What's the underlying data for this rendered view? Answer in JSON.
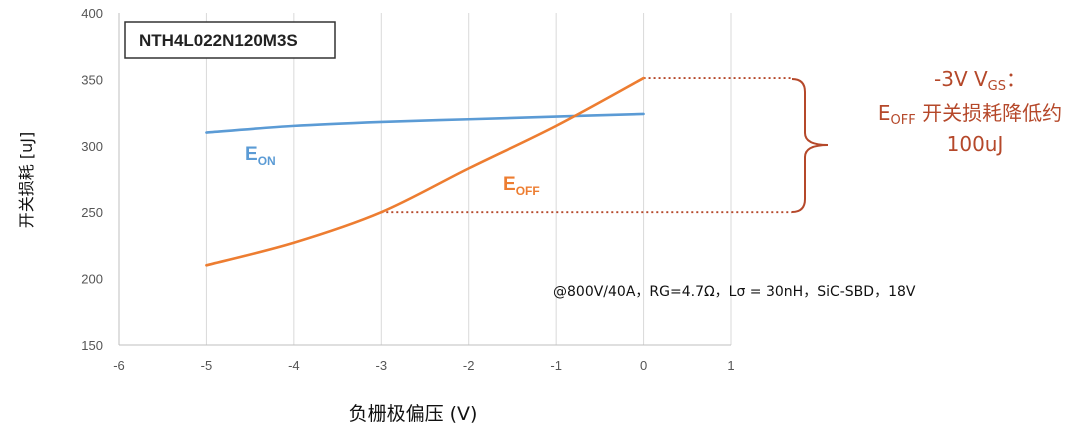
{
  "chart_data": {
    "type": "line",
    "xlabel": "负栅极偏压 (V)",
    "ylabel": "开关损耗 [uJ]",
    "xlim": [
      -6,
      1
    ],
    "ylim": [
      150,
      400
    ],
    "xticks": [
      -6,
      -5,
      -4,
      -3,
      -2,
      -1,
      0,
      1
    ],
    "yticks": [
      150,
      200,
      250,
      300,
      350,
      400
    ],
    "grid": "vertical",
    "device_label": "NTH4L022N120M3S",
    "conditions": "@800V/40A，RG=4.7Ω，Lσ = 30nH，SiC-SBD，18V",
    "series": [
      {
        "name": "EON",
        "label_main": "E",
        "label_sub": "ON",
        "color": "#5b9bd5",
        "x": [
          -5,
          -4,
          -3,
          -2,
          -1,
          0
        ],
        "y": [
          310,
          315,
          318,
          320,
          322,
          324
        ]
      },
      {
        "name": "EOFF",
        "label_main": "E",
        "label_sub": "OFF",
        "color": "#ed7d31",
        "x": [
          -5,
          -4,
          -3,
          -2,
          -1,
          0
        ],
        "y": [
          210,
          227,
          250,
          283,
          315,
          351
        ]
      }
    ],
    "annotation": {
      "color": "#b5482a",
      "line1_pre": "-3V V",
      "line1_sub": "GS",
      "line1_post": "：",
      "line2_main": "E",
      "line2_sub": "OFF",
      "line2_post": " 开关损耗降低约",
      "line3": "100uJ",
      "upper_value": 351,
      "lower_value": 250
    }
  }
}
